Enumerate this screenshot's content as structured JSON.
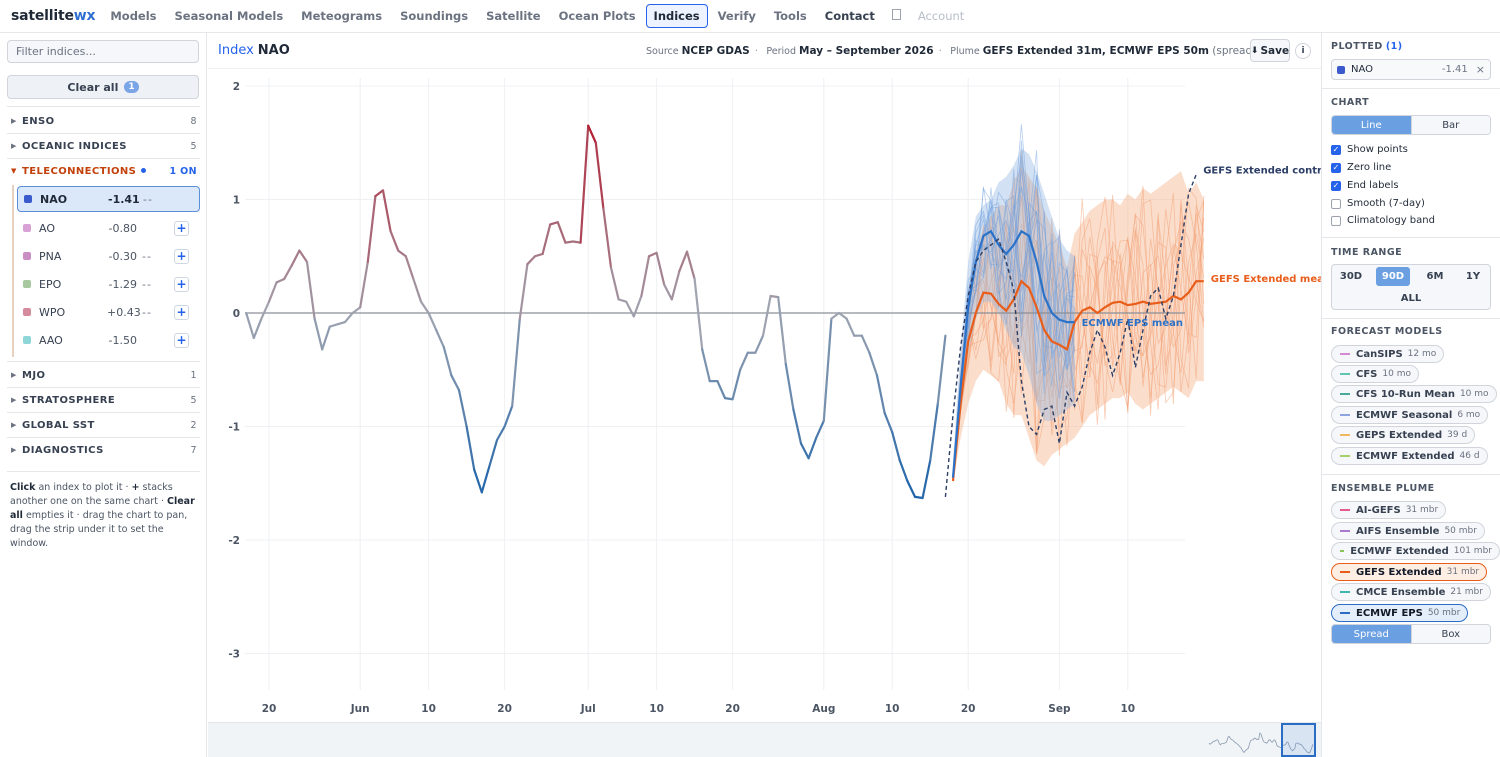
{
  "nav": {
    "brand_part1": "satellite",
    "brand_part2": "wx",
    "items": [
      "Models",
      "Seasonal Models",
      "Meteograms",
      "Soundings",
      "Satellite",
      "Ocean Plots",
      "Indices",
      "Verify",
      "Tools",
      "Contact"
    ],
    "active": "Indices",
    "account": "Account"
  },
  "sidebar": {
    "filter_placeholder": "Filter indices...",
    "clear_all": "Clear all",
    "clear_count": "1",
    "groups": {
      "enso": {
        "name": "ENSO",
        "count": "8"
      },
      "oceanic": {
        "name": "OCEANIC INDICES",
        "count": "5"
      },
      "tele": {
        "name": "TELECONNECTIONS",
        "count": "1 ON"
      },
      "mjo": {
        "name": "MJO",
        "count": "1"
      },
      "strato": {
        "name": "STRATOSPHERE",
        "count": "5"
      },
      "sst": {
        "name": "GLOBAL SST",
        "count": "2"
      },
      "diag": {
        "name": "DIAGNOSTICS",
        "count": "7"
      }
    },
    "indices": [
      {
        "name": "NAO",
        "value": "-1.41",
        "trend": "--",
        "color": "#3b5bcc"
      },
      {
        "name": "AO",
        "value": "-0.80",
        "trend": "",
        "color": "#d9a2d6"
      },
      {
        "name": "PNA",
        "value": "-0.30",
        "trend": "--",
        "color": "#c98fc4"
      },
      {
        "name": "EPO",
        "value": "-1.29",
        "trend": "--",
        "color": "#a8c9a0"
      },
      {
        "name": "WPO",
        "value": "+0.43",
        "trend": "--",
        "color": "#d68a9e"
      },
      {
        "name": "AAO",
        "value": "-1.50",
        "trend": "",
        "color": "#8fd6d8"
      }
    ],
    "add_label": "+",
    "help": {
      "b1": "Click",
      "t1": " an index to plot it · ",
      "b2": "+",
      "t2": " stacks another one on the same chart · ",
      "b3": "Clear all",
      "t3": " empties it · drag the chart to pan, drag the strip under it to set the window."
    }
  },
  "header": {
    "label": "Index",
    "title": "NAO",
    "source_k": "Source",
    "source_v": "NCEP GDAS",
    "period_k": "Period",
    "period_v": "May – September 2026",
    "plume_k": "Plume",
    "plume_v": "GEFS Extended 31m, ECMWF EPS 50m",
    "plume_note": "(spread)",
    "save": "Save",
    "save_icon": "⬇",
    "info": "i"
  },
  "chart_data": {
    "type": "line",
    "ylim": [
      -3.5,
      2.1
    ],
    "yticks": [
      2,
      1,
      0,
      -1,
      -2,
      -3
    ],
    "xticks": [
      {
        "label": "20",
        "day": 0
      },
      {
        "label": "Jun",
        "day": 12
      },
      {
        "label": "10",
        "day": 21
      },
      {
        "label": "20",
        "day": 31
      },
      {
        "label": "Jul",
        "day": 42
      },
      {
        "label": "10",
        "day": 51
      },
      {
        "label": "20",
        "day": 61
      },
      {
        "label": "Aug",
        "day": 73
      },
      {
        "label": "10",
        "day": 82
      },
      {
        "label": "20",
        "day": 92
      },
      {
        "label": "Sep",
        "day": 104
      },
      {
        "label": "10",
        "day": 113
      }
    ],
    "zero_line": true,
    "observed": {
      "name": "NAO",
      "start_day": -3,
      "values": [
        0.0,
        -0.22,
        -0.05,
        0.1,
        0.27,
        0.3,
        0.42,
        0.55,
        0.45,
        -0.05,
        -0.32,
        -0.12,
        -0.1,
        -0.08,
        0.0,
        0.05,
        0.45,
        1.03,
        1.08,
        0.72,
        0.55,
        0.5,
        0.3,
        0.1,
        0.0,
        -0.15,
        -0.3,
        -0.55,
        -0.68,
        -1.0,
        -1.38,
        -1.58,
        -1.35,
        -1.12,
        -1.0,
        -0.82,
        -0.05,
        0.43,
        0.5,
        0.52,
        0.78,
        0.8,
        0.62,
        0.63,
        0.62,
        1.65,
        1.5,
        0.92,
        0.4,
        0.12,
        0.1,
        -0.03,
        0.15,
        0.5,
        0.53,
        0.25,
        0.12,
        0.37,
        0.54,
        0.3,
        -0.32,
        -0.6,
        -0.6,
        -0.75,
        -0.76,
        -0.5,
        -0.35,
        -0.35,
        -0.2,
        0.15,
        0.14,
        -0.45,
        -0.85,
        -1.15,
        -1.28,
        -1.1,
        -0.95,
        -0.05,
        0.0,
        -0.05,
        -0.2,
        -0.2,
        -0.35,
        -0.55,
        -0.88,
        -1.05,
        -1.3,
        -1.48,
        -1.62,
        -1.63,
        -1.3,
        -0.8,
        -0.2
      ]
    },
    "control": {
      "name": "GEFS Extended control",
      "start_day": 89,
      "values": [
        -1.62,
        -0.9,
        -0.3,
        0.15,
        0.45,
        0.55,
        0.6,
        0.65,
        0.45,
        0.2,
        -0.6,
        -1.0,
        -1.07,
        -0.85,
        -0.82,
        -1.15,
        -0.7,
        -0.82,
        -0.65,
        -0.35,
        -0.15,
        -0.3,
        -0.55,
        -0.35,
        -0.05,
        -0.48,
        -0.15,
        0.15,
        0.22,
        -0.05,
        0.15,
        0.6,
        1.05,
        1.22
      ]
    },
    "gefs_mean": {
      "name": "GEFS Extended mean",
      "start_day": 90,
      "values": [
        -1.48,
        -0.8,
        -0.25,
        0.0,
        0.18,
        0.17,
        0.08,
        0.02,
        0.12,
        0.28,
        0.22,
        0.05,
        -0.15,
        -0.25,
        -0.28,
        -0.32,
        -0.08,
        0.02,
        0.05,
        0.0,
        0.05,
        0.09,
        0.1,
        0.07,
        0.08,
        0.1,
        0.08,
        0.09,
        0.1,
        0.15,
        0.12,
        0.18,
        0.28,
        0.28
      ]
    },
    "ecmwf_mean": {
      "name": "ECMWF EPS mean",
      "start_day": 90,
      "values": [
        -1.45,
        -0.65,
        0.05,
        0.45,
        0.68,
        0.72,
        0.6,
        0.52,
        0.6,
        0.72,
        0.68,
        0.45,
        0.15,
        0.0,
        -0.06,
        -0.08,
        -0.08
      ]
    },
    "gefs_spread": {
      "start_day": 90,
      "lower": [
        -1.5,
        -1.1,
        -0.8,
        -0.6,
        -0.5,
        -0.55,
        -0.6,
        -0.8,
        -0.9,
        -0.9,
        -1.1,
        -1.3,
        -1.35,
        -1.25,
        -1.2,
        -1.15,
        -1.1,
        -1.0,
        -0.9,
        -0.85,
        -0.8,
        -0.75,
        -0.75,
        -0.7,
        -0.8,
        -0.85,
        -0.8,
        -0.75,
        -0.7,
        -0.65,
        -0.7,
        -0.75,
        -0.6,
        -0.6
      ],
      "upper": [
        -1.4,
        -0.4,
        0.2,
        0.55,
        0.75,
        0.85,
        0.95,
        0.95,
        1.15,
        1.3,
        1.2,
        1.1,
        0.9,
        0.75,
        0.6,
        0.4,
        0.7,
        0.8,
        0.9,
        0.95,
        1.0,
        1.0,
        0.95,
        1.05,
        1.0,
        1.1,
        1.05,
        1.1,
        1.15,
        1.2,
        1.25,
        1.05,
        1.15,
        1.0
      ]
    },
    "ecmwf_spread": {
      "start_day": 90,
      "lower": [
        -1.5,
        -0.9,
        -0.35,
        -0.05,
        0.1,
        0.1,
        0.0,
        -0.15,
        -0.3,
        -0.35,
        -0.55,
        -0.8,
        -0.95,
        -0.95,
        -0.9,
        -0.85,
        -0.8
      ],
      "upper": [
        -1.3,
        -0.3,
        0.45,
        0.85,
        0.95,
        1.0,
        1.15,
        1.2,
        1.3,
        1.45,
        1.4,
        1.25,
        1.05,
        0.85,
        0.65,
        0.55,
        0.5
      ]
    }
  },
  "right": {
    "plotted_title": "PLOTTED",
    "plotted_count": "(1)",
    "plotted_name": "NAO",
    "plotted_value": "-1.41",
    "plotted_remove": "×",
    "chart_title": "CHART",
    "chart_line": "Line",
    "chart_bar": "Bar",
    "options": [
      {
        "label": "Show points",
        "checked": true
      },
      {
        "label": "Zero line",
        "checked": true
      },
      {
        "label": "End labels",
        "checked": true
      },
      {
        "label": "Smooth (7-day)",
        "checked": false
      },
      {
        "label": "Climatology band",
        "checked": false
      }
    ],
    "time_title": "TIME RANGE",
    "time": [
      "30D",
      "90D",
      "6M",
      "1Y"
    ],
    "time_active": "90D",
    "time_all": "ALL",
    "models_title": "FORECAST MODELS",
    "models": [
      {
        "name": "CanSIPS",
        "span": "12 mo",
        "color": "#d58ad4"
      },
      {
        "name": "CFS",
        "span": "10 mo",
        "color": "#5fc4b0"
      },
      {
        "name": "CFS 10-Run Mean",
        "span": "10 mo",
        "color": "#49a99b"
      },
      {
        "name": "ECMWF Seasonal",
        "span": "6 mo",
        "color": "#8ea5e0"
      },
      {
        "name": "GEPS Extended",
        "span": "39 d",
        "color": "#f0b860"
      },
      {
        "name": "ECMWF Extended",
        "span": "46 d",
        "color": "#a4cf6b"
      }
    ],
    "plume_title": "ENSEMBLE PLUME",
    "plumes": [
      {
        "name": "AI-GEFS",
        "span": "31 mbr",
        "color": "#e35b8f"
      },
      {
        "name": "AIFS Ensemble",
        "span": "50 mbr",
        "color": "#a77ad0"
      },
      {
        "name": "ECMWF Extended",
        "span": "101 mbr",
        "color": "#8bc45a"
      },
      {
        "name": "GEFS Extended",
        "span": "31 mbr",
        "color": "#e85d1a"
      },
      {
        "name": "CMCE Ensemble",
        "span": "21 mbr",
        "color": "#3fb8b0"
      },
      {
        "name": "ECMWF EPS",
        "span": "50 mbr",
        "color": "#2b6cc4"
      }
    ],
    "spread": "Spread",
    "box": "Box"
  }
}
